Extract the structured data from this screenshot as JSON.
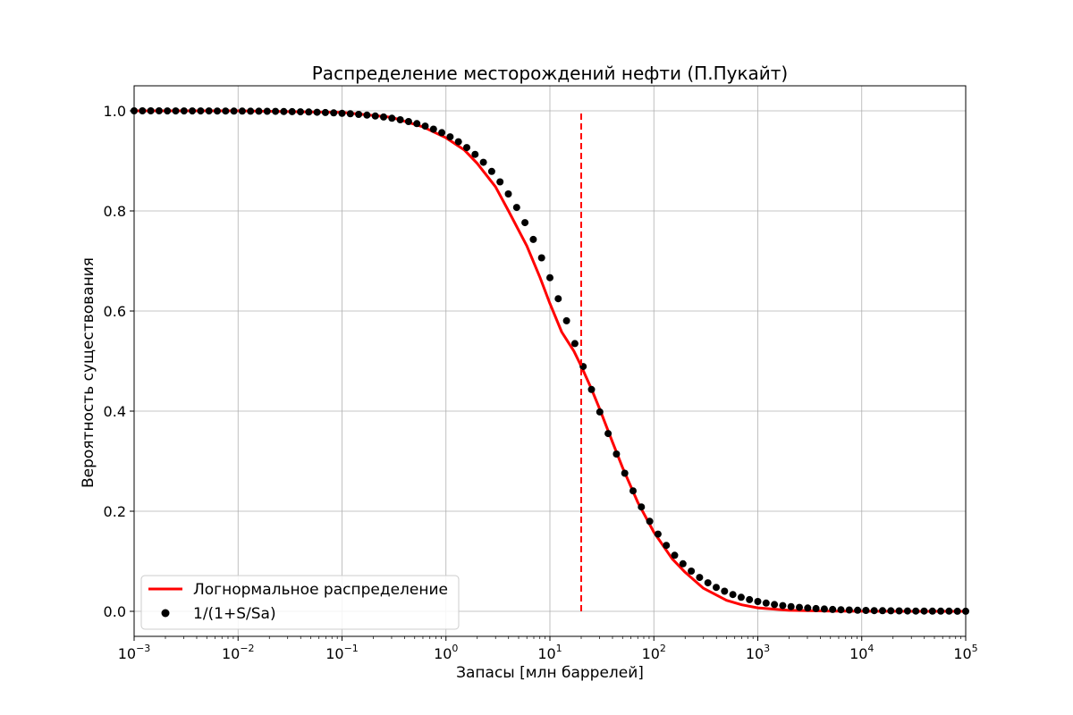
{
  "chart_data": {
    "type": "line",
    "title": "Распределение месторождений нефти (П.Пукайт)",
    "xlabel": "Запасы [млн баррелей]",
    "ylabel": "Вероятность существования",
    "x_scale": "log",
    "xlim": [
      0.001,
      100000
    ],
    "ylim": [
      -0.05,
      1.05
    ],
    "x_ticks": [
      {
        "base": "10",
        "exp": "−3",
        "value": 0.001
      },
      {
        "base": "10",
        "exp": "−2",
        "value": 0.01
      },
      {
        "base": "10",
        "exp": "−1",
        "value": 0.1
      },
      {
        "base": "10",
        "exp": "0",
        "value": 1
      },
      {
        "base": "10",
        "exp": "1",
        "value": 10
      },
      {
        "base": "10",
        "exp": "2",
        "value": 100
      },
      {
        "base": "10",
        "exp": "3",
        "value": 1000
      },
      {
        "base": "10",
        "exp": "4",
        "value": 10000
      },
      {
        "base": "10",
        "exp": "5",
        "value": 100000
      }
    ],
    "y_ticks": [
      {
        "label": "0.0",
        "value": 0.0
      },
      {
        "label": "0.2",
        "value": 0.2
      },
      {
        "label": "0.4",
        "value": 0.4
      },
      {
        "label": "0.6",
        "value": 0.6
      },
      {
        "label": "0.8",
        "value": 0.8
      },
      {
        "label": "1.0",
        "value": 1.0
      }
    ],
    "grid": true,
    "legend_position": "lower-left",
    "series": [
      {
        "name": "Логнормальное распределение",
        "kind": "line",
        "color": "#ff0000",
        "x": [
          0.001,
          0.01,
          0.1,
          0.3,
          0.6,
          1,
          1.5,
          2,
          3,
          4,
          6,
          8,
          10,
          13,
          17,
          20,
          25,
          30,
          40,
          50,
          70,
          100,
          150,
          200,
          300,
          500,
          700,
          1000,
          2000,
          5000,
          10000,
          100000
        ],
        "y": [
          1.0,
          1.0,
          0.997,
          0.987,
          0.968,
          0.946,
          0.922,
          0.895,
          0.848,
          0.8,
          0.73,
          0.668,
          0.615,
          0.558,
          0.52,
          0.49,
          0.445,
          0.405,
          0.338,
          0.287,
          0.218,
          0.158,
          0.105,
          0.078,
          0.046,
          0.022,
          0.013,
          0.007,
          0.002,
          0.0005,
          0.0001,
          0.0
        ]
      },
      {
        "name": "1/(1+S/Sa)",
        "kind": "scatter",
        "color": "#000000",
        "sa": 20,
        "log10_start": -3,
        "log10_end": 5,
        "count": 101
      }
    ],
    "annotations": [
      {
        "type": "vline",
        "x": 20,
        "y_from": 0.0,
        "y_to": 1.0,
        "color": "#ff0000",
        "style": "dashed"
      }
    ]
  }
}
